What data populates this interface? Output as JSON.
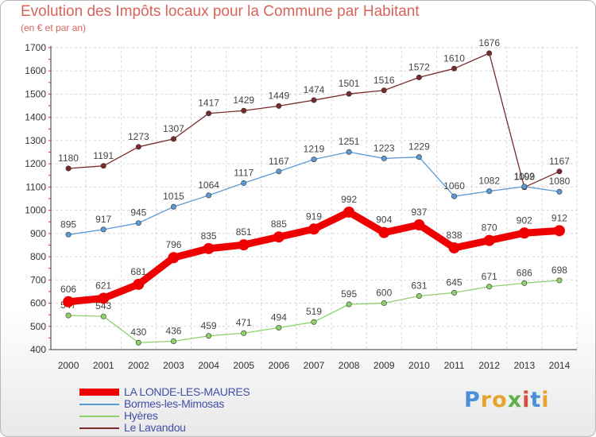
{
  "title": "Evolution des Impôts locaux pour la Commune par Habitant",
  "subtitle": "(en € et par an)",
  "logo_text": "Proxiti",
  "chart_data": {
    "type": "line",
    "title": "Evolution des Impôts locaux pour la Commune par Habitant",
    "subtitle": "(en € et par an)",
    "x": [
      "2000",
      "2001",
      "2002",
      "2003",
      "2004",
      "2005",
      "2006",
      "2007",
      "2008",
      "2009",
      "2010",
      "2011",
      "2012",
      "2013",
      "2014"
    ],
    "ylim": [
      400,
      1700
    ],
    "yticks": [
      400,
      500,
      600,
      700,
      800,
      900,
      1000,
      1100,
      1200,
      1300,
      1400,
      1500,
      1600,
      1700
    ],
    "grid": true,
    "series": [
      {
        "name": "Le Lavandou",
        "color": "#7b2a2a",
        "values": [
          1180,
          1191,
          1273,
          1307,
          1417,
          1429,
          1449,
          1474,
          1501,
          1516,
          1572,
          1610,
          1676,
          1099,
          1167
        ]
      },
      {
        "name": "Bormes-les-Mimosas",
        "color": "#5b9bd5",
        "values": [
          895,
          917,
          945,
          1015,
          1064,
          1117,
          1167,
          1219,
          1251,
          1223,
          1229,
          1060,
          1082,
          1102,
          1080
        ]
      },
      {
        "name": "Hyères",
        "color": "#8fd16a",
        "values": [
          547,
          543,
          430,
          436,
          459,
          471,
          494,
          519,
          595,
          600,
          631,
          645,
          671,
          686,
          698
        ]
      },
      {
        "name": "LA LONDE-LES-MAURES",
        "color": "#ee0000",
        "values": [
          606,
          621,
          681,
          796,
          835,
          851,
          885,
          919,
          992,
          904,
          937,
          838,
          870,
          902,
          912
        ]
      }
    ],
    "legend": [
      "LA LONDE-LES-MAURES",
      "Bormes-les-Mimosas",
      "Hyères",
      "Le Lavandou"
    ]
  }
}
